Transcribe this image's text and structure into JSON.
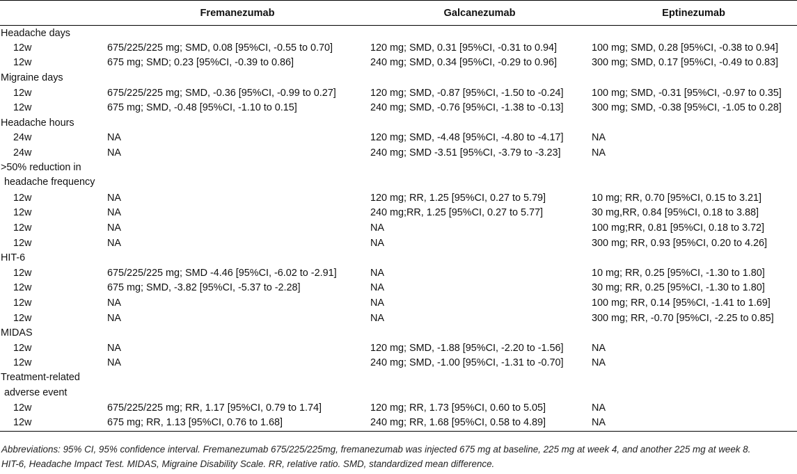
{
  "table": {
    "headers": [
      "",
      "Fremanezumab",
      "Galcanezumab",
      "Eptinezumab"
    ],
    "sections": [
      {
        "label": "Headache days",
        "rows": [
          [
            "12w",
            "675/225/225 mg; SMD, 0.08 [95%CI, -0.55 to 0.70]",
            "120 mg; SMD, 0.31 [95%CI, -0.31 to 0.94]",
            "100 mg; SMD, 0.28 [95%CI, -0.38 to 0.94]"
          ],
          [
            "12w",
            "675 mg; SMD; 0.23 [95%CI, -0.39 to 0.86]",
            "240 mg; SMD, 0.34 [95%CI, -0.29 to 0.96]",
            "300 mg; SMD, 0.17 [95%CI, -0.49 to 0.83]"
          ]
        ]
      },
      {
        "label": "Migraine days",
        "rows": [
          [
            "12w",
            "675/225/225 mg; SMD, -0.36 [95%CI, -0.99 to 0.27]",
            "120 mg; SMD, -0.87 [95%CI, -1.50 to -0.24]",
            "100 mg; SMD, -0.31 [95%CI, -0.97 to 0.35]"
          ],
          [
            "12w",
            "675 mg; SMD, -0.48 [95%CI, -1.10 to 0.15]",
            "240 mg; SMD, -0.76 [95%CI, -1.38 to -0.13]",
            "300 mg; SMD, -0.38 [95%CI, -1.05 to 0.28]"
          ]
        ]
      },
      {
        "label": "Headache hours",
        "rows": [
          [
            "24w",
            "NA",
            "120 mg; SMD, -4.48 [95%CI, -4.80 to -4.17]",
            "NA"
          ],
          [
            "24w",
            "NA",
            "240 mg; SMD -3.51 [95%CI, -3.79 to -3.23]",
            "NA"
          ]
        ]
      },
      {
        "label": ">50% reduction in",
        "label_line2": "headache frequency",
        "rows": [
          [
            "12w",
            "NA",
            "120 mg; RR, 1.25 [95%CI, 0.27 to 5.79]",
            "10 mg; RR, 0.70 [95%CI, 0.15 to 3.21]"
          ],
          [
            "12w",
            "NA",
            "240 mg;RR, 1.25 [95%CI, 0.27 to 5.77]",
            "30 mg,RR, 0.84 [95%CI, 0.18 to 3.88]"
          ],
          [
            "12w",
            "NA",
            "NA",
            "100 mg;RR, 0.81 [95%CI, 0.18 to 3.72]"
          ],
          [
            "12w",
            "NA",
            "NA",
            "300 mg; RR, 0.93 [95%CI, 0.20 to 4.26]"
          ]
        ]
      },
      {
        "label": "HIT-6",
        "rows": [
          [
            "12w",
            "675/225/225 mg; SMD -4.46 [95%CI, -6.02 to -2.91]",
            "NA",
            "10 mg; RR, 0.25 [95%CI, -1.30 to 1.80]"
          ],
          [
            "12w",
            "675 mg; SMD, -3.82 [95%CI, -5.37 to -2.28]",
            "NA",
            "30 mg; RR, 0.25 [95%CI, -1.30 to 1.80]"
          ],
          [
            "12w",
            "NA",
            "NA",
            "100 mg; RR, 0.14 [95%CI, -1.41 to 1.69]"
          ],
          [
            "12w",
            "NA",
            "NA",
            "300 mg; RR, -0.70 [95%CI, -2.25 to 0.85]"
          ]
        ]
      },
      {
        "label": "MIDAS",
        "rows": [
          [
            "12w",
            "NA",
            "120 mg; SMD, -1.88 [95%CI, -2.20 to -1.56]",
            "NA"
          ],
          [
            "12w",
            "NA",
            "240 mg; SMD, -1.00 [95%CI, -1.31 to -0.70]",
            "NA"
          ]
        ]
      },
      {
        "label": "Treatment-related",
        "label_line2": "adverse event",
        "rows": [
          [
            "12w",
            "675/225/225 mg; RR, 1.17 [95%CI, 0.79 to 1.74]",
            "120 mg; RR, 1.73 [95%CI, 0.60 to 5.05]",
            "NA"
          ],
          [
            "12w",
            "675 mg; RR, 1.13 [95%CI, 0.76 to 1.68]",
            "240 mg; RR, 1.68 [95%CI, 0.58 to 4.89]",
            "NA"
          ]
        ]
      }
    ]
  },
  "footnote": {
    "line1": "Abbreviations: 95% CI, 95% confidence interval. Fremanezumab 675/225/225mg, fremanezumab was injected 675 mg at baseline, 225 mg at week 4, and another 225 mg at week 8.",
    "line2": "HIT-6, Headache Impact Test. MIDAS, Migraine Disability Scale. RR, relative ratio. SMD, standardized mean difference."
  }
}
